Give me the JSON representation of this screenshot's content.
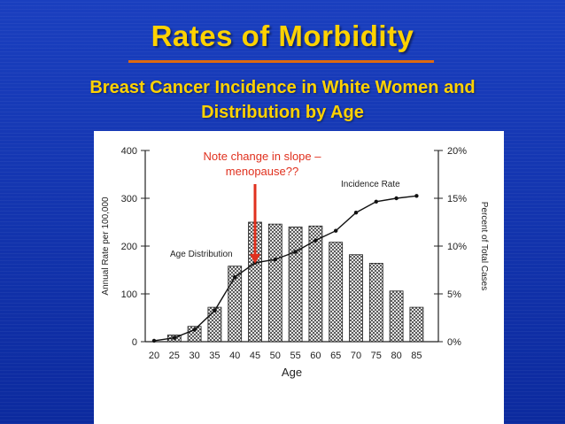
{
  "slide": {
    "title": "Rates of Morbidity",
    "subtitle_line1": "Breast Cancer Incidence in White Women and",
    "subtitle_line2": "Distribution by Age"
  },
  "colors": {
    "background": "#1133aa",
    "title": "#ffd200",
    "underline": "#e06a10",
    "annotation": "#e0301e"
  },
  "chart_data": {
    "type": "bar",
    "xlabel": "Age",
    "ylabel": "Annual Rate per 100,000",
    "y2label": "Percent of Total Cases",
    "categories": [
      "20",
      "25",
      "30",
      "35",
      "40",
      "45",
      "50",
      "55",
      "60",
      "65",
      "70",
      "75",
      "80",
      "85"
    ],
    "ylim": [
      0,
      400
    ],
    "yticks": [
      "0",
      "100",
      "200",
      "300",
      "400"
    ],
    "y2lim": [
      0,
      20
    ],
    "y2ticks": [
      "0%",
      "5%",
      "10%",
      "15%",
      "20%"
    ],
    "grid": false,
    "series": [
      {
        "name": "Age Distribution",
        "kind": "bar",
        "axis": "right",
        "values": [
          0,
          0.7,
          1.6,
          3.6,
          7.9,
          12.5,
          12.3,
          12.0,
          12.1,
          10.4,
          9.1,
          8.2,
          5.3,
          3.6
        ]
      },
      {
        "name": "Incidence Rate",
        "kind": "line",
        "axis": "left",
        "values": [
          2,
          8,
          25,
          65,
          135,
          165,
          172,
          188,
          212,
          232,
          270,
          293,
          300,
          305
        ]
      }
    ],
    "annotations": {
      "note_line1": "Note change in slope –",
      "note_line2": "menopause??",
      "note_target_category": "45"
    }
  }
}
